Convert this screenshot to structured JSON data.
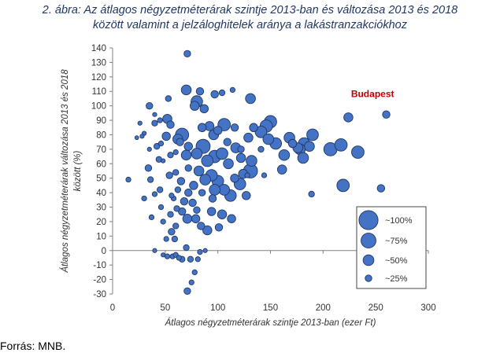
{
  "title_line1": "2. ábra: Az átlagos négyzetméterárak szintje 2013-ban és változása 2013 és 2018",
  "title_line2": "között valamint a jelzáloghitelek aránya a lakástranzakciókhoz",
  "source": "Forrás: MNB.",
  "colors": {
    "bubble_fill": "#4472c4",
    "bubble_stroke": "#1f3864",
    "annotation": "#c00000"
  },
  "chart_data": {
    "type": "scatter",
    "title": "2. ábra: Az átlagos négyzetméterárak szintje 2013-ban és változása 2013 és 2018 között valamint a jelzáloghitelek aránya a lakástranzakciókhoz",
    "xlabel": "Átlagos négyzetméterárak szintje 2013-ban (ezer Ft)",
    "ylabel_line1": "Átlagos négyzetméterárak változása 2013 és 2018",
    "ylabel_line2": "között (%)",
    "xlim": [
      0,
      300
    ],
    "ylim": [
      -30,
      140
    ],
    "xticks": [
      0,
      50,
      100,
      150,
      200,
      250,
      300
    ],
    "yticks": [
      -30,
      -20,
      -10,
      0,
      10,
      20,
      30,
      40,
      50,
      60,
      70,
      80,
      90,
      100,
      110,
      120,
      130,
      140
    ],
    "grid": false,
    "size_legend": [
      {
        "label": "~100%",
        "size": 100
      },
      {
        "label": "~75%",
        "size": 75
      },
      {
        "label": "~50%",
        "size": 50
      },
      {
        "label": "~25%",
        "size": 25
      }
    ],
    "annotations": [
      {
        "text": "Budapest",
        "x": 247,
        "y": 106
      }
    ],
    "points": [
      [
        71,
        136,
        25
      ],
      [
        70,
        111,
        45
      ],
      [
        80,
        103,
        55
      ],
      [
        78,
        100,
        40
      ],
      [
        87,
        98,
        35
      ],
      [
        83,
        110,
        30
      ],
      [
        97,
        108,
        30
      ],
      [
        104,
        109,
        20
      ],
      [
        114,
        111,
        15
      ],
      [
        131,
        105,
        45
      ],
      [
        35,
        100,
        25
      ],
      [
        45,
        90,
        15
      ],
      [
        40,
        88,
        20
      ],
      [
        53,
        105,
        20
      ],
      [
        52,
        91,
        40
      ],
      [
        55,
        87,
        30
      ],
      [
        51,
        79,
        35
      ],
      [
        62,
        77,
        45
      ],
      [
        66,
        80,
        65
      ],
      [
        72,
        72,
        35
      ],
      [
        64,
        75,
        30
      ],
      [
        70,
        66,
        45
      ],
      [
        80,
        67,
        50
      ],
      [
        86,
        72,
        70
      ],
      [
        92,
        86,
        40
      ],
      [
        96,
        80,
        45
      ],
      [
        100,
        83,
        35
      ],
      [
        106,
        87,
        60
      ],
      [
        97,
        65,
        60
      ],
      [
        104,
        67,
        55
      ],
      [
        110,
        60,
        45
      ],
      [
        117,
        71,
        45
      ],
      [
        122,
        64,
        40
      ],
      [
        129,
        78,
        40
      ],
      [
        132,
        62,
        50
      ],
      [
        131,
        55,
        70
      ],
      [
        124,
        53,
        40
      ],
      [
        121,
        46,
        55
      ],
      [
        116,
        50,
        35
      ],
      [
        112,
        38,
        55
      ],
      [
        106,
        42,
        50
      ],
      [
        100,
        48,
        55
      ],
      [
        94,
        52,
        55
      ],
      [
        88,
        49,
        50
      ],
      [
        82,
        55,
        45
      ],
      [
        77,
        45,
        35
      ],
      [
        72,
        40,
        30
      ],
      [
        68,
        34,
        30
      ],
      [
        66,
        27,
        30
      ],
      [
        71,
        22,
        40
      ],
      [
        79,
        22,
        35
      ],
      [
        84,
        17,
        30
      ],
      [
        90,
        14,
        40
      ],
      [
        101,
        16,
        30
      ],
      [
        94,
        27,
        35
      ],
      [
        104,
        25,
        40
      ],
      [
        113,
        22,
        35
      ],
      [
        97,
        42,
        50
      ],
      [
        85,
        85,
        35
      ],
      [
        90,
        62,
        55
      ],
      [
        62,
        42,
        20
      ],
      [
        58,
        36,
        15
      ],
      [
        61,
        29,
        20
      ],
      [
        55,
        25,
        20
      ],
      [
        56,
        13,
        25
      ],
      [
        59,
        8,
        20
      ],
      [
        51,
        8,
        15
      ],
      [
        48,
        20,
        15
      ],
      [
        46,
        30,
        15
      ],
      [
        45,
        42,
        20
      ],
      [
        40,
        39,
        15
      ],
      [
        37,
        23,
        15
      ],
      [
        30,
        36,
        15
      ],
      [
        36,
        49,
        20
      ],
      [
        34,
        57,
        25
      ],
      [
        44,
        63,
        20
      ],
      [
        42,
        72,
        20
      ],
      [
        46,
        74,
        15
      ],
      [
        55,
        66,
        20
      ],
      [
        54,
        52,
        25
      ],
      [
        60,
        54,
        20
      ],
      [
        65,
        48,
        30
      ],
      [
        72,
        57,
        25
      ],
      [
        15,
        49,
        15
      ],
      [
        30,
        81,
        10
      ],
      [
        28,
        79,
        10
      ],
      [
        35,
        70,
        10
      ],
      [
        48,
        62,
        10
      ],
      [
        23,
        78,
        8
      ],
      [
        26,
        88,
        10
      ],
      [
        40,
        94,
        10
      ],
      [
        60,
        68,
        15
      ],
      [
        40,
        0,
        10
      ],
      [
        48,
        -3,
        10
      ],
      [
        52,
        -4,
        15
      ],
      [
        57,
        -4,
        15
      ],
      [
        60,
        -3,
        15
      ],
      [
        66,
        -6,
        20
      ],
      [
        63,
        -5,
        15
      ],
      [
        74,
        -6,
        20
      ],
      [
        78,
        -15,
        15
      ],
      [
        75,
        -22,
        15
      ],
      [
        71,
        -28,
        25
      ],
      [
        81,
        -6,
        15
      ],
      [
        83,
        -1,
        15
      ],
      [
        70,
        2,
        20
      ],
      [
        88,
        0,
        10
      ],
      [
        80,
        28,
        25
      ],
      [
        76,
        33,
        30
      ],
      [
        60,
        17,
        20
      ],
      [
        56,
        38,
        15
      ],
      [
        85,
        40,
        25
      ],
      [
        150,
        89,
        60
      ],
      [
        146,
        86,
        60
      ],
      [
        141,
        82,
        55
      ],
      [
        148,
        77,
        50
      ],
      [
        155,
        74,
        55
      ],
      [
        163,
        66,
        50
      ],
      [
        161,
        56,
        40
      ],
      [
        168,
        78,
        50
      ],
      [
        176,
        71,
        45
      ],
      [
        171,
        74,
        35
      ],
      [
        178,
        70,
        50
      ],
      [
        181,
        64,
        50
      ],
      [
        182,
        74,
        55
      ],
      [
        190,
        80,
        55
      ],
      [
        187,
        72,
        45
      ],
      [
        207,
        70,
        65
      ],
      [
        217,
        73,
        60
      ],
      [
        233,
        68,
        60
      ],
      [
        219,
        45,
        60
      ],
      [
        224,
        92,
        40
      ],
      [
        255,
        43,
        30
      ],
      [
        260,
        94,
        30
      ],
      [
        189,
        39,
        20
      ],
      [
        144,
        52,
        15
      ],
      [
        128,
        52,
        15
      ],
      [
        141,
        70,
        20
      ],
      [
        134,
        85,
        35
      ],
      [
        116,
        85,
        30
      ],
      [
        109,
        75,
        30
      ],
      [
        122,
        70,
        25
      ],
      [
        95,
        36,
        30
      ],
      [
        127,
        38,
        35
      ]
    ]
  }
}
